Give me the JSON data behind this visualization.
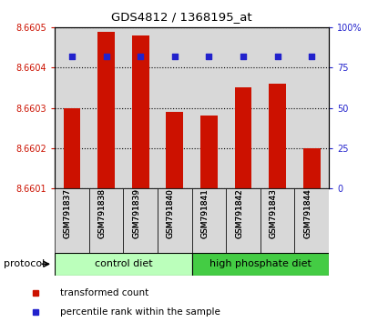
{
  "title": "GDS4812 / 1368195_at",
  "samples": [
    "GSM791837",
    "GSM791838",
    "GSM791839",
    "GSM791840",
    "GSM791841",
    "GSM791842",
    "GSM791843",
    "GSM791844"
  ],
  "bar_values": [
    8.6603,
    8.66049,
    8.66048,
    8.66029,
    8.66028,
    8.66035,
    8.66036,
    8.6602
  ],
  "percentile_values": [
    82,
    82,
    82,
    82,
    82,
    82,
    82,
    82
  ],
  "ylim_left": [
    8.6601,
    8.6605
  ],
  "ylim_right": [
    0,
    100
  ],
  "yticks_left": [
    8.6601,
    8.6602,
    8.6603,
    8.6604,
    8.6605
  ],
  "ytick_labels_right": [
    "0",
    "25",
    "50",
    "75",
    "100%"
  ],
  "yticks_right": [
    0,
    25,
    50,
    75,
    100
  ],
  "bar_color": "#cc1100",
  "dot_color": "#2222cc",
  "cell_bg_color": "#d8d8d8",
  "groups": [
    {
      "label": "control diet",
      "indices": [
        0,
        1,
        2,
        3
      ],
      "color": "#bbffbb"
    },
    {
      "label": "high phosphate diet",
      "indices": [
        4,
        5,
        6,
        7
      ],
      "color": "#44cc44"
    }
  ],
  "protocol_label": "protocol",
  "legend_items": [
    {
      "color": "#cc1100",
      "label": "transformed count"
    },
    {
      "color": "#2222cc",
      "label": "percentile rank within the sample"
    }
  ],
  "left_label_color": "#cc1100",
  "right_label_color": "#2222cc",
  "fig_width": 4.15,
  "fig_height": 3.54,
  "dpi": 100
}
